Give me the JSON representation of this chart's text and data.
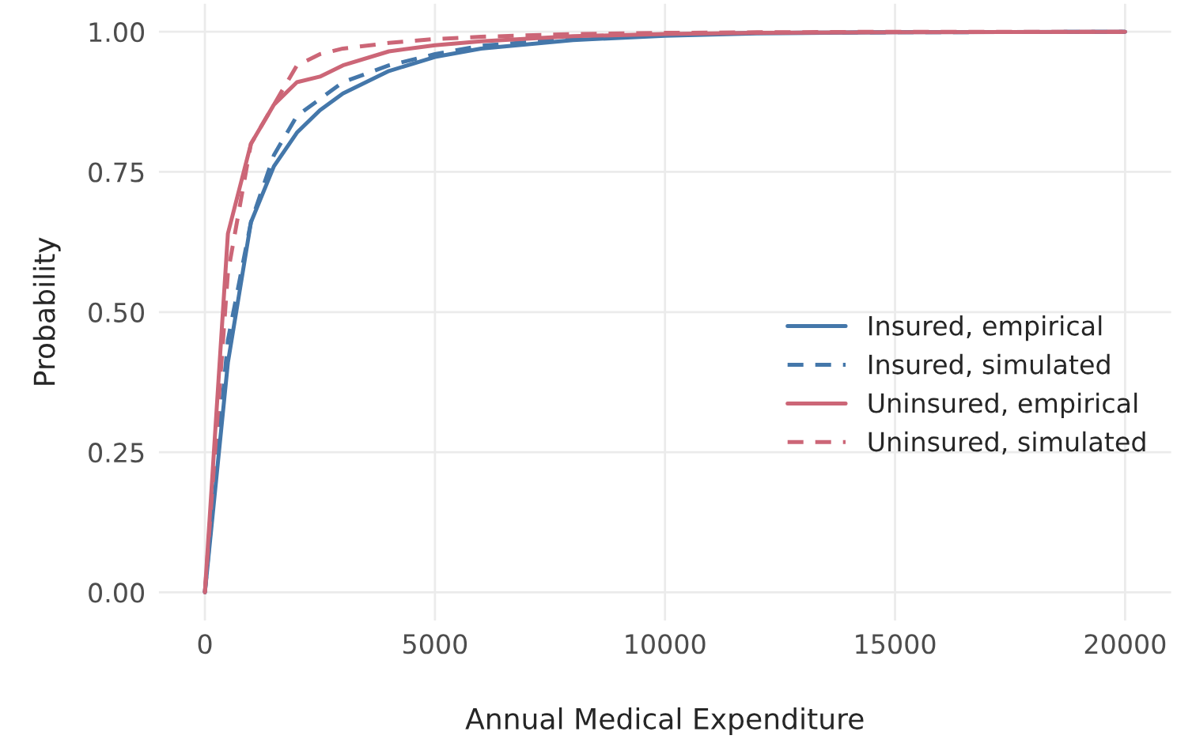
{
  "chart_data": {
    "type": "line",
    "xlabel": "Annual Medical Expenditure",
    "ylabel": "Probability",
    "x": [
      0,
      500,
      1000,
      1500,
      2000,
      2500,
      3000,
      4000,
      5000,
      6000,
      8000,
      10000,
      12000,
      15000,
      20000
    ],
    "xlim": [
      -1000,
      21000
    ],
    "xticks": [
      0,
      5000,
      10000,
      15000,
      20000
    ],
    "ylim": [
      -0.05,
      1.05
    ],
    "yticks": [
      {
        "value": 0,
        "label": "0.00"
      },
      {
        "value": 0.25,
        "label": "0.25"
      },
      {
        "value": 0.5,
        "label": "0.50"
      },
      {
        "value": 0.75,
        "label": "0.75"
      },
      {
        "value": 1,
        "label": "1.00"
      }
    ],
    "grid": true,
    "legend": "right",
    "marker": "none",
    "series": [
      {
        "name": "Insured, empirical",
        "color": "#4477aa",
        "line_style": "solid",
        "values": [
          0,
          0.41,
          0.66,
          0.76,
          0.82,
          0.86,
          0.89,
          0.93,
          0.955,
          0.97,
          0.985,
          0.993,
          0.997,
          0.999,
          1.0
        ]
      },
      {
        "name": "Insured, simulated",
        "color": "#4477aa",
        "line_style": "dashed",
        "values": [
          0,
          0.45,
          0.66,
          0.78,
          0.85,
          0.88,
          0.91,
          0.94,
          0.96,
          0.975,
          0.988,
          0.995,
          0.998,
          0.999,
          1.0
        ]
      },
      {
        "name": "Uninsured, empirical",
        "color": "#cc6677",
        "line_style": "solid",
        "values": [
          0,
          0.64,
          0.8,
          0.87,
          0.91,
          0.92,
          0.94,
          0.965,
          0.976,
          0.983,
          0.992,
          0.996,
          0.998,
          0.999,
          1.0
        ]
      },
      {
        "name": "Uninsured, simulated",
        "color": "#cc6677",
        "line_style": "dashed",
        "values": [
          0,
          0.57,
          0.8,
          0.87,
          0.94,
          0.96,
          0.97,
          0.98,
          0.987,
          0.991,
          0.996,
          0.998,
          0.999,
          1.0,
          1.0
        ]
      }
    ]
  }
}
